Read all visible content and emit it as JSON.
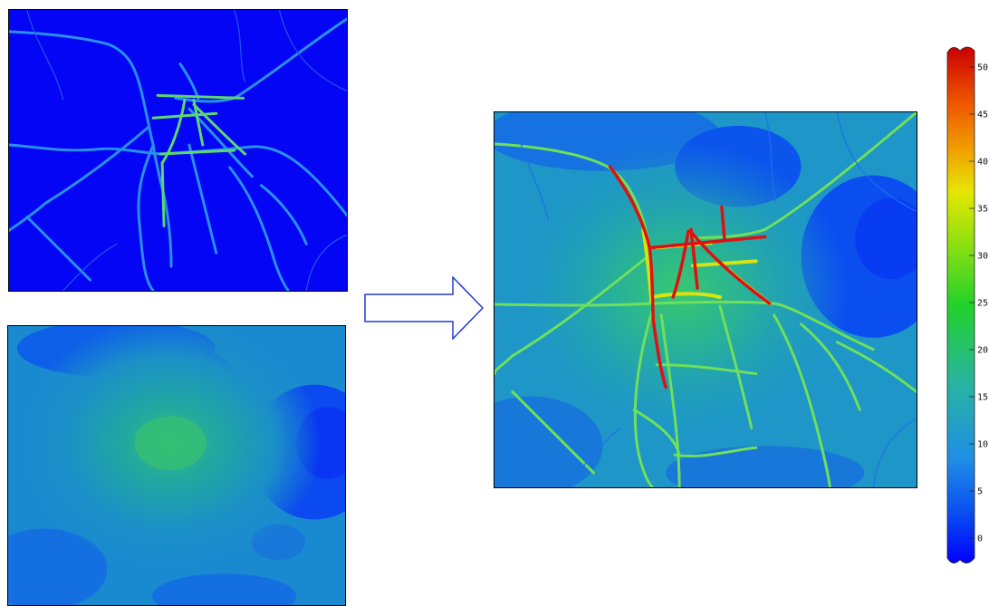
{
  "figure": {
    "panels": {
      "roads_concentration": "roads-map",
      "background_concentration": "background-map",
      "combined_concentration": "combined-map"
    },
    "arrow_icon": "right-arrow-icon",
    "colorbar": {
      "tick_labels": [
        "50",
        "45",
        "40",
        "35",
        "30",
        "25",
        "20",
        "15",
        "10",
        "5",
        "0"
      ],
      "color_stops": [
        "#0000ff",
        "#0a50f0",
        "#1f8ee6",
        "#28b4a0",
        "#22d22a",
        "#8fe010",
        "#e6e600",
        "#f0a000",
        "#f06000",
        "#e03000",
        "#c80000"
      ]
    }
  }
}
